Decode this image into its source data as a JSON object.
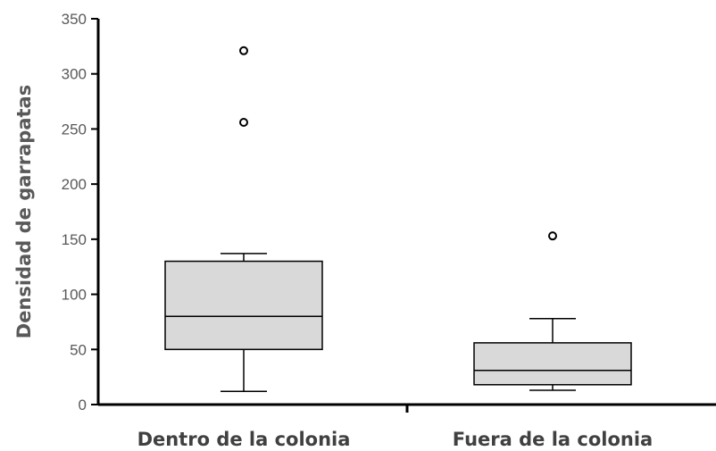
{
  "chart_data": {
    "type": "boxplot",
    "ylabel": "Densidad de garrapatas",
    "ylim": [
      0,
      350
    ],
    "yticks": [
      0,
      50,
      100,
      150,
      200,
      250,
      300,
      350
    ],
    "grid": false,
    "categories": [
      "Dentro de la colonia",
      "Fuera de la colonia"
    ],
    "boxes": [
      {
        "category": "Dentro de la colonia",
        "whisker_low": 12,
        "q1": 50,
        "median": 80,
        "q3": 130,
        "whisker_high": 137,
        "outliers": [
          256,
          321
        ]
      },
      {
        "category": "Fuera de la colonia",
        "whisker_low": 13,
        "q1": 18,
        "median": 31,
        "q3": 56,
        "whisker_high": 78,
        "outliers": [
          153
        ]
      }
    ],
    "colors": {
      "box_fill": "#d9d9d9",
      "stroke": "#000000"
    }
  }
}
